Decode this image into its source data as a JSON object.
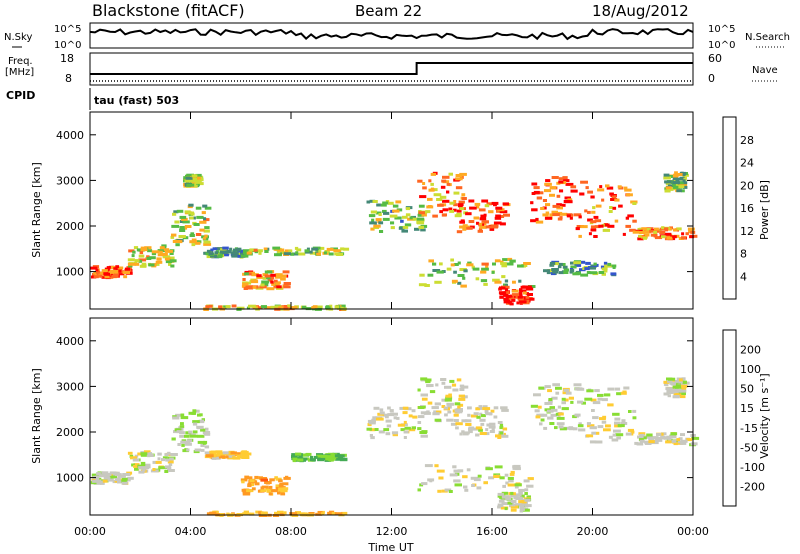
{
  "header": {
    "station": "Blackstone (fitACF)",
    "beam": "Beam 22",
    "date": "18/Aug/2012"
  },
  "top_panels": {
    "nsky_label": "N.Sky",
    "nsky_ticks": [
      "10^5",
      "10^0"
    ],
    "nsearch_label": "N.Search",
    "freq_label": "Freq.",
    "freq_unit": "[MHz]",
    "freq_ticks": [
      "18",
      "8"
    ],
    "nave_label": "Nave",
    "nave_ticks": [
      "60",
      "0"
    ],
    "cpid_label": "CPID",
    "cpid_text": "tau (fast) 503"
  },
  "chart_data": [
    {
      "type": "heatmap",
      "title": "",
      "xlabel": "Time UT",
      "ylabel": "Slant Range [km]",
      "xlim": [
        0,
        24
      ],
      "ylim": [
        180,
        4500
      ],
      "yticks": [
        "1000",
        "2000",
        "3000",
        "4000"
      ],
      "xticks": [
        "00:00",
        "04:00",
        "08:00",
        "12:00",
        "16:00",
        "20:00",
        "00:00"
      ],
      "colorbar": {
        "label": "Power [dB]",
        "ticks": [
          "4",
          "8",
          "12",
          "16",
          "20",
          "24",
          "28"
        ],
        "colors": [
          "#0000ff",
          "#3355cc",
          "#448877",
          "#55bb44",
          "#ccdd33",
          "#ffaa22",
          "#ff6622",
          "#ff0000"
        ]
      },
      "regions": [
        {
          "t0": 0.0,
          "t1": 1.5,
          "r0": 900,
          "r1": 1150,
          "level": 0.85
        },
        {
          "t0": 1.5,
          "t1": 3.2,
          "r0": 1150,
          "r1": 1600,
          "level": 0.6
        },
        {
          "t0": 3.2,
          "t1": 4.6,
          "r0": 1600,
          "r1": 2500,
          "level": 0.55
        },
        {
          "t0": 3.7,
          "t1": 4.3,
          "r0": 2900,
          "r1": 3150,
          "level": 0.5
        },
        {
          "t0": 4.5,
          "t1": 6.2,
          "r0": 1350,
          "r1": 1550,
          "level": 0.4
        },
        {
          "t0": 6.0,
          "t1": 7.8,
          "r0": 650,
          "r1": 1050,
          "level": 0.7
        },
        {
          "t0": 6.2,
          "t1": 10.1,
          "r0": 1400,
          "r1": 1550,
          "level": 0.55
        },
        {
          "t0": 4.5,
          "t1": 10.0,
          "r0": 200,
          "r1": 280,
          "level": 0.6
        },
        {
          "t0": 11.0,
          "t1": 13.2,
          "r0": 1900,
          "r1": 2600,
          "level": 0.45
        },
        {
          "t0": 13.0,
          "t1": 14.8,
          "r0": 2200,
          "r1": 3200,
          "level": 0.75
        },
        {
          "t0": 14.5,
          "t1": 16.5,
          "r0": 1900,
          "r1": 2600,
          "level": 0.8
        },
        {
          "t0": 13.0,
          "t1": 17.5,
          "r0": 700,
          "r1": 1300,
          "level": 0.55
        },
        {
          "t0": 16.2,
          "t1": 17.4,
          "r0": 300,
          "r1": 700,
          "level": 0.95
        },
        {
          "t0": 17.5,
          "t1": 19.3,
          "r0": 2100,
          "r1": 3100,
          "level": 0.85
        },
        {
          "t0": 19.3,
          "t1": 21.6,
          "r0": 1800,
          "r1": 3000,
          "level": 0.8
        },
        {
          "t0": 21.6,
          "t1": 24.0,
          "r0": 1750,
          "r1": 2000,
          "level": 0.75
        },
        {
          "t0": 22.8,
          "t1": 23.6,
          "r0": 2800,
          "r1": 3200,
          "level": 0.5
        },
        {
          "t0": 18.0,
          "t1": 21.0,
          "r0": 950,
          "r1": 1250,
          "level": 0.35
        }
      ]
    },
    {
      "type": "heatmap",
      "title": "",
      "xlabel": "Time UT",
      "ylabel": "Slant Range [km]",
      "xlim": [
        0,
        24
      ],
      "ylim": [
        180,
        4500
      ],
      "yticks": [
        "1000",
        "2000",
        "3000",
        "4000"
      ],
      "xticks": [
        "00:00",
        "04:00",
        "08:00",
        "12:00",
        "16:00",
        "20:00",
        "00:00"
      ],
      "colorbar": {
        "label": "Velocity [m s⁻¹]",
        "ticks": [
          "200",
          "100",
          "50",
          "15",
          "-15",
          "-50",
          "-100",
          "-200"
        ],
        "colors": [
          "#2244cc",
          "#337799",
          "#44aa55",
          "#88dd33",
          "#c8c8c0",
          "#ffcc33",
          "#ff9922",
          "#ff5511",
          "#ff0000"
        ]
      },
      "regions": [
        {
          "t0": 0.0,
          "t1": 1.5,
          "r0": 900,
          "r1": 1150,
          "level": 0.5
        },
        {
          "t0": 1.5,
          "t1": 3.2,
          "r0": 1150,
          "r1": 1600,
          "level": 0.5
        },
        {
          "t0": 3.2,
          "t1": 4.6,
          "r0": 1600,
          "r1": 2500,
          "level": 0.45
        },
        {
          "t0": 4.5,
          "t1": 6.2,
          "r0": 1450,
          "r1": 1600,
          "level": 0.62
        },
        {
          "t0": 6.0,
          "t1": 7.8,
          "r0": 650,
          "r1": 1050,
          "level": 0.7
        },
        {
          "t0": 8.0,
          "t1": 10.1,
          "r0": 1400,
          "r1": 1550,
          "level": 0.32
        },
        {
          "t0": 4.5,
          "t1": 10.0,
          "r0": 200,
          "r1": 280,
          "level": 0.65
        },
        {
          "t0": 11.0,
          "t1": 13.2,
          "r0": 1900,
          "r1": 2600,
          "level": 0.5
        },
        {
          "t0": 13.0,
          "t1": 14.8,
          "r0": 2200,
          "r1": 3200,
          "level": 0.5
        },
        {
          "t0": 14.5,
          "t1": 16.5,
          "r0": 1900,
          "r1": 2600,
          "level": 0.5
        },
        {
          "t0": 13.0,
          "t1": 17.5,
          "r0": 700,
          "r1": 1300,
          "level": 0.5
        },
        {
          "t0": 16.2,
          "t1": 17.4,
          "r0": 300,
          "r1": 700,
          "level": 0.5
        },
        {
          "t0": 17.5,
          "t1": 19.3,
          "r0": 2100,
          "r1": 3100,
          "level": 0.5
        },
        {
          "t0": 19.3,
          "t1": 21.6,
          "r0": 1800,
          "r1": 3000,
          "level": 0.5
        },
        {
          "t0": 21.6,
          "t1": 24.0,
          "r0": 1750,
          "r1": 2000,
          "level": 0.5
        },
        {
          "t0": 22.8,
          "t1": 23.6,
          "r0": 2800,
          "r1": 3200,
          "level": 0.5
        }
      ]
    }
  ]
}
